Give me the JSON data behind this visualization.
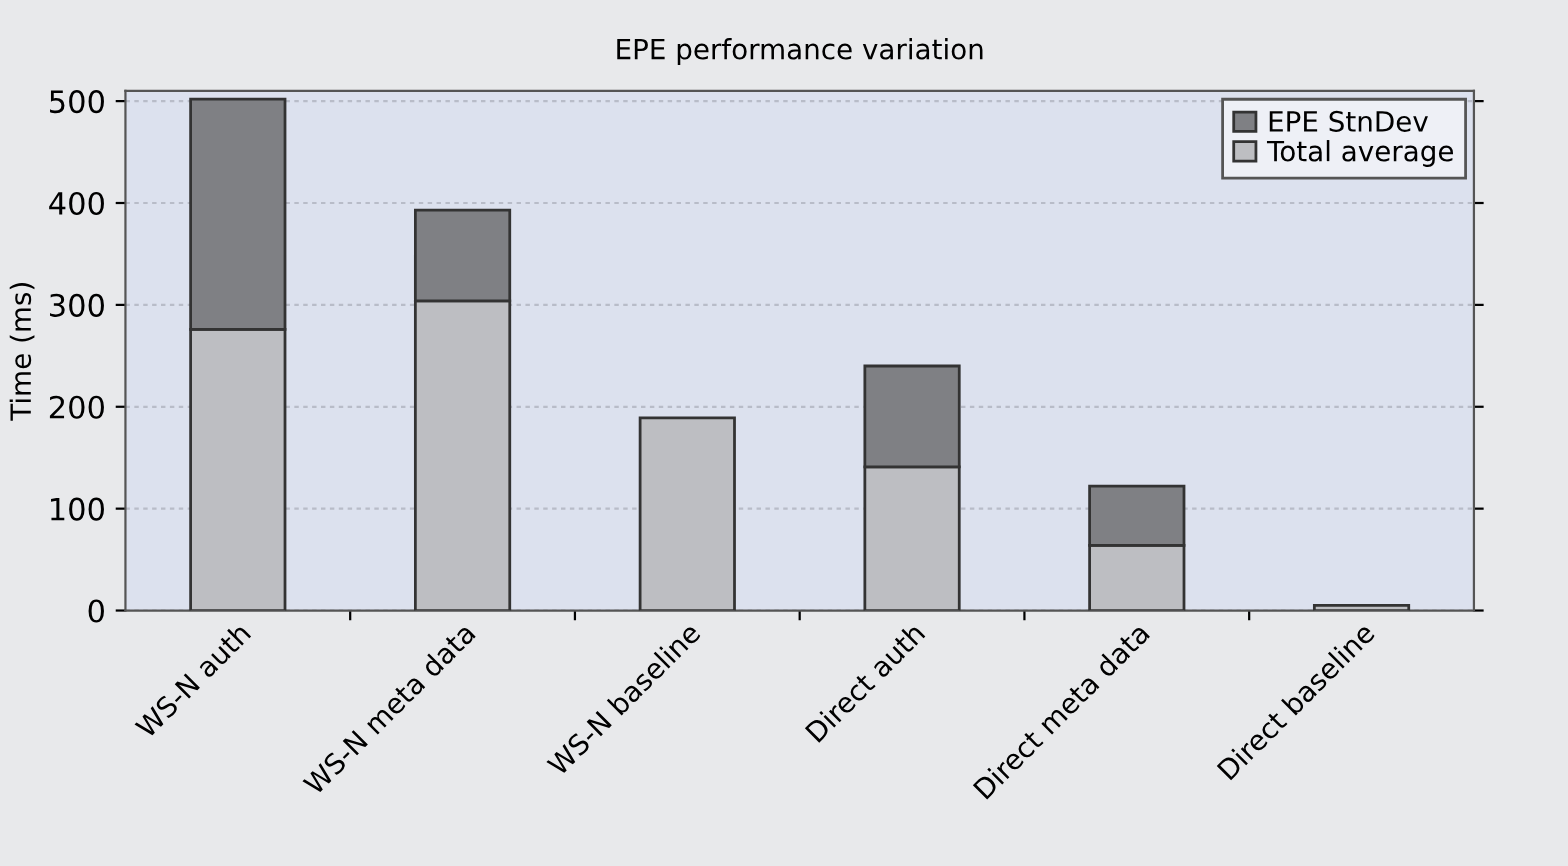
{
  "chart_data": {
    "type": "bar",
    "stacked": true,
    "title": "EPE performance variation",
    "ylabel": "Time (ms)",
    "categories": [
      "WS-N auth",
      "WS-N meta data",
      "WS-N baseline",
      "Direct auth",
      "Direct meta data",
      "Direct baseline"
    ],
    "series": [
      {
        "name": "Total average",
        "color": "#bdbec2",
        "values": [
          276,
          304,
          189,
          141,
          64,
          5
        ]
      },
      {
        "name": "EPE StnDev",
        "color": "#7f8084",
        "values": [
          226,
          89,
          null,
          99,
          58,
          null
        ]
      }
    ],
    "ylim": [
      0,
      510
    ],
    "yticks": [
      0,
      100,
      200,
      300,
      400,
      500
    ],
    "grid": "y",
    "legend": "top right"
  }
}
